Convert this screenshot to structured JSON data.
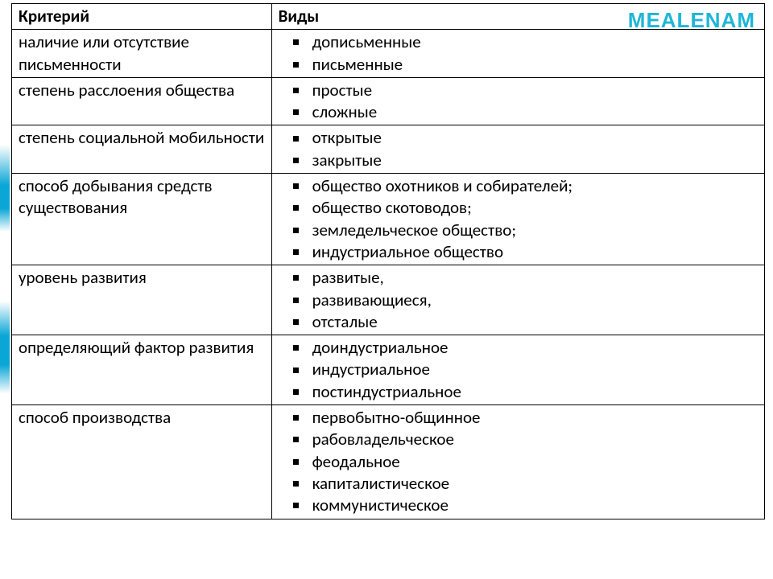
{
  "watermark": "MEALENAM",
  "style": {
    "border_color": "#000000",
    "text_color": "#000000",
    "font_size_pt": 16,
    "header_font_weight": 700,
    "bullet_shape": "square",
    "bullet_color": "#000000",
    "accent_color": "#0aa6d6",
    "watermark_color": "#1fb6d6",
    "background_color": "#ffffff",
    "col_widths_pct": [
      34.5,
      65.5
    ]
  },
  "table": {
    "headers": {
      "left": "Критерий",
      "right": "Виды"
    },
    "rows": [
      {
        "criterion": "наличие или отсутствие письменности",
        "items": [
          "дописьменные",
          "письменные"
        ]
      },
      {
        "criterion": "степень расслоения общества",
        "items": [
          "простые",
          "сложные"
        ]
      },
      {
        "criterion": "степень социальной мобильности",
        "items": [
          "открытые",
          "закрытые"
        ]
      },
      {
        "criterion": "способ добывания средств существования",
        "items": [
          "общество охотников и собирателей;",
          "общество скотоводов;",
          "земледельческое общество;",
          "индустриальное общество"
        ]
      },
      {
        "criterion": "уровень развития",
        "items": [
          "развитые,",
          "развивающиеся,",
          "отсталые"
        ]
      },
      {
        "criterion": "определяющий фактор развития",
        "items": [
          "доиндустриальное",
          "индустриальное",
          "постиндустриальное"
        ]
      },
      {
        "criterion": "способ производства",
        "items": [
          "первобытно-общинное",
          "рабовладельческое",
          "феодальное",
          "капиталистическое",
          "коммунистическое"
        ]
      }
    ]
  }
}
